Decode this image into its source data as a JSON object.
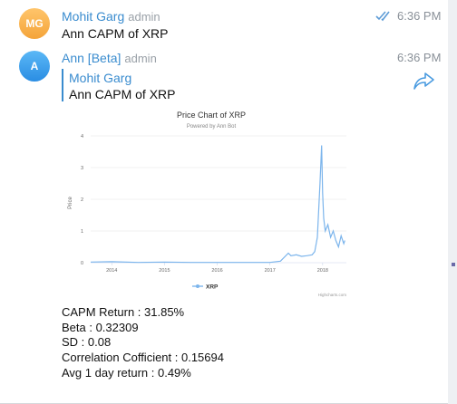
{
  "messages": [
    {
      "avatar": "MG",
      "sender": "Mohit Garg",
      "role": "admin",
      "time": "6:36 PM",
      "text": "Ann CAPM of XRP"
    },
    {
      "avatar": "A",
      "sender": "Ann [Beta]",
      "role": "admin",
      "time": "6:36 PM",
      "quote": {
        "sender": "Mohit Garg",
        "text": "Ann CAPM of XRP"
      }
    }
  ],
  "icons": {
    "read_receipt": "double-check-icon",
    "forward": "share-arrow-icon"
  },
  "colors": {
    "accent": "#3a8ccf",
    "series": "#7cb5ec"
  },
  "chart_data": {
    "type": "line",
    "title": "Price Chart of XRP",
    "subtitle": "Powered by Ann Bot",
    "xlabel": "",
    "ylabel": "Price",
    "ylim": [
      0,
      4
    ],
    "yticks": [
      "0",
      "1",
      "2",
      "3",
      "4"
    ],
    "xticks": [
      "2014",
      "2015",
      "2016",
      "2017",
      "2018"
    ],
    "legend": "bottom-center",
    "credit": "Highcharts.com",
    "series": [
      {
        "name": "XRP",
        "x": [
          2013.6,
          2014.0,
          2014.5,
          2015.0,
          2015.5,
          2016.0,
          2016.5,
          2017.0,
          2017.2,
          2017.35,
          2017.4,
          2017.5,
          2017.6,
          2017.7,
          2017.8,
          2017.85,
          2017.9,
          2017.95,
          2017.98,
          2018.0,
          2018.02,
          2018.05,
          2018.1,
          2018.15,
          2018.2,
          2018.25,
          2018.3,
          2018.35,
          2018.4,
          2018.42
        ],
        "y": [
          0.02,
          0.03,
          0.01,
          0.02,
          0.01,
          0.01,
          0.01,
          0.01,
          0.05,
          0.3,
          0.22,
          0.25,
          0.2,
          0.22,
          0.25,
          0.35,
          0.8,
          2.5,
          3.7,
          2.2,
          1.4,
          1.0,
          1.2,
          0.8,
          1.0,
          0.7,
          0.5,
          0.85,
          0.6,
          0.7
        ]
      }
    ]
  },
  "stats": [
    "CAPM Return : 31.85%",
    "Beta : 0.32309",
    "SD : 0.08",
    "Correlation Cofficient : 0.15694",
    "Avg 1 day return : 0.49%"
  ]
}
